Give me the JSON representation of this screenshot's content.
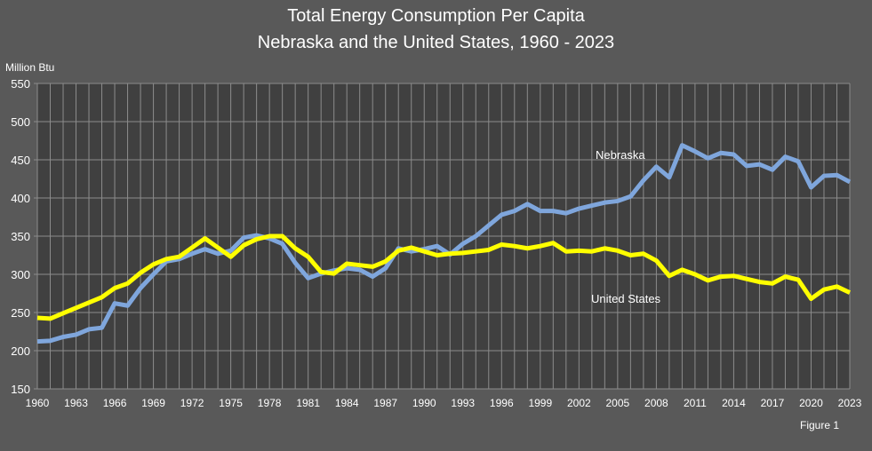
{
  "chart_data": {
    "type": "line",
    "title": "Total Energy Consumption Per Capita",
    "subtitle": "Nebraska and the United States, 1960 - 2023",
    "ylabel": "Million Btu",
    "xlabel": "",
    "footer": "Figure 1",
    "ylim": [
      150,
      550
    ],
    "yticks": [
      150,
      200,
      250,
      300,
      350,
      400,
      450,
      500,
      550
    ],
    "xlim": [
      1960,
      2023
    ],
    "xticks": [
      1960,
      1963,
      1966,
      1969,
      1972,
      1975,
      1978,
      1981,
      1984,
      1987,
      1990,
      1993,
      1996,
      1999,
      2002,
      2005,
      2008,
      2011,
      2014,
      2017,
      2020,
      2023
    ],
    "grid": true,
    "background": "#404040",
    "x": [
      1960,
      1961,
      1962,
      1963,
      1964,
      1965,
      1966,
      1967,
      1968,
      1969,
      1970,
      1971,
      1972,
      1973,
      1974,
      1975,
      1976,
      1977,
      1978,
      1979,
      1980,
      1981,
      1982,
      1983,
      1984,
      1985,
      1986,
      1987,
      1988,
      1989,
      1990,
      1991,
      1992,
      1993,
      1994,
      1995,
      1996,
      1997,
      1998,
      1999,
      2000,
      2001,
      2002,
      2003,
      2004,
      2005,
      2006,
      2007,
      2008,
      2009,
      2010,
      2011,
      2012,
      2013,
      2014,
      2015,
      2016,
      2017,
      2018,
      2019,
      2020,
      2021,
      2022,
      2023
    ],
    "series": [
      {
        "name": "Nebraska",
        "color": "#7fa6dc",
        "values": [
          212,
          213,
          218,
          221,
          228,
          230,
          262,
          259,
          282,
          300,
          317,
          320,
          327,
          333,
          327,
          331,
          348,
          351,
          347,
          340,
          315,
          295,
          301,
          305,
          308,
          306,
          297,
          308,
          334,
          330,
          333,
          337,
          326,
          340,
          350,
          364,
          378,
          383,
          392,
          383,
          383,
          380,
          386,
          390,
          394,
          396,
          402,
          423,
          441,
          427,
          469,
          461,
          452,
          459,
          457,
          442,
          444,
          437,
          454,
          448,
          414,
          429,
          430,
          421
        ]
      },
      {
        "name": "United States",
        "color": "#ffff00",
        "values": [
          243,
          242,
          249,
          256,
          263,
          270,
          282,
          288,
          302,
          313,
          320,
          323,
          335,
          347,
          335,
          323,
          338,
          346,
          350,
          350,
          334,
          323,
          303,
          301,
          314,
          312,
          310,
          317,
          331,
          335,
          330,
          325,
          327,
          328,
          330,
          332,
          339,
          337,
          334,
          337,
          341,
          330,
          331,
          330,
          334,
          331,
          325,
          327,
          318,
          298,
          306,
          300,
          292,
          297,
          298,
          294,
          290,
          288,
          297,
          293,
          268,
          280,
          284,
          276
        ]
      }
    ]
  }
}
